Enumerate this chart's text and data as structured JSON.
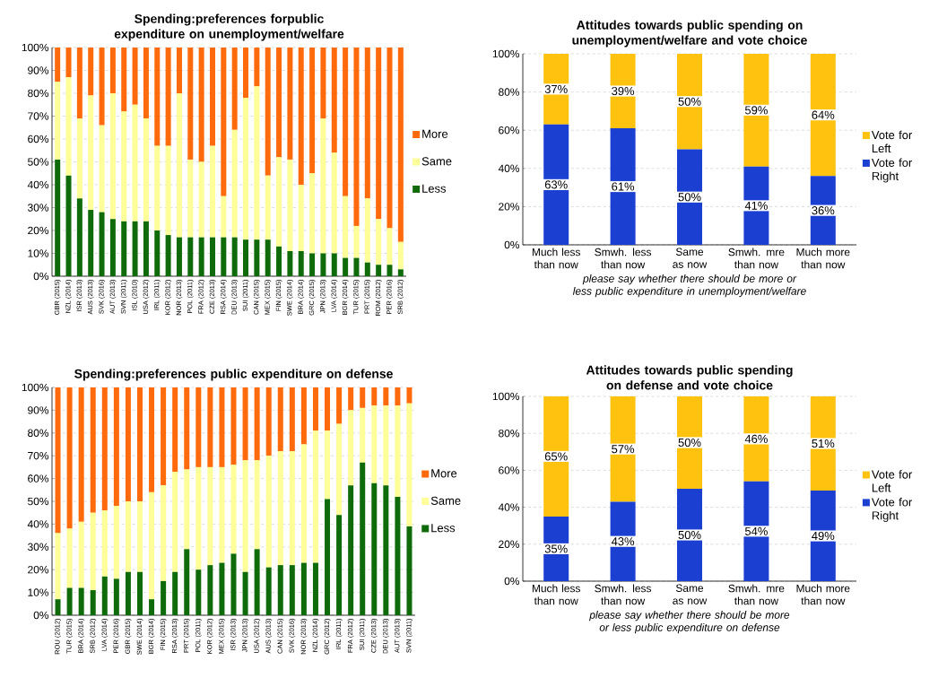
{
  "chart_data": [
    {
      "type": "bar",
      "stacked": true,
      "title": "Spending:preferences forpublic expenditure on unemployment/welfare",
      "grid": "y",
      "legend": "right",
      "categories": [
        "GBR (2015)",
        "NZL (2014)",
        "ISR (2013)",
        "AUS (2013)",
        "SVK (2016)",
        "AUT (2013)",
        "SVN (2011)",
        "ISL (2010)",
        "USA (2012)",
        "IRL (2011)",
        "KOR (2012)",
        "NOR (2013)",
        "POL (2011)",
        "FRA (2012)",
        "CZE (2013)",
        "RSA (2014)",
        "DEU (2013)",
        "SUI (2011)",
        "CAN (2015)",
        "MEX (2015)",
        "FIN (2015)",
        "SWE (2014)",
        "BRA (2014)",
        "GRC (2015)",
        "JPN (2013)",
        "LVA (2014)",
        "BGR (2014)",
        "TUR (2015)",
        "PRT (2015)",
        "ROM (2012)",
        "PER (2016)",
        "SRB (2012)"
      ],
      "series": [
        {
          "name": "Less",
          "color": "#0f6b0a",
          "values": [
            51,
            44,
            34,
            29,
            28,
            25,
            24,
            24,
            24,
            20,
            18,
            17,
            17,
            17,
            17,
            17,
            17,
            16,
            16,
            16,
            13,
            11,
            11,
            10,
            10,
            10,
            8,
            8,
            6,
            5,
            5,
            3
          ]
        },
        {
          "name": "Same",
          "color": "#ffff99",
          "values": [
            34,
            43,
            35,
            50,
            38,
            55,
            48,
            51,
            45,
            37,
            39,
            63,
            34,
            33,
            40,
            18,
            47,
            62,
            67,
            28,
            39,
            40,
            29,
            35,
            59,
            44,
            27,
            14,
            28,
            20,
            16,
            12
          ]
        },
        {
          "name": "More",
          "color": "#ff6a0d",
          "values": [
            15,
            13,
            31,
            21,
            34,
            20,
            28,
            25,
            31,
            43,
            43,
            20,
            49,
            50,
            43,
            65,
            36,
            22,
            17,
            56,
            48,
            49,
            60,
            55,
            31,
            46,
            65,
            78,
            66,
            75,
            79,
            85
          ]
        }
      ],
      "ylim": [
        0,
        100
      ],
      "yticks": [
        {
          "value": 0,
          "label": "0%"
        },
        {
          "value": 10,
          "label": "10%"
        },
        {
          "value": 20,
          "label": "20%"
        },
        {
          "value": 30,
          "label": "30%"
        },
        {
          "value": 40,
          "label": "40%"
        },
        {
          "value": 50,
          "label": "50%"
        },
        {
          "value": 60,
          "label": "60%"
        },
        {
          "value": 70,
          "label": "70%"
        },
        {
          "value": 80,
          "label": "80%"
        },
        {
          "value": 90,
          "label": "90%"
        },
        {
          "value": 100,
          "label": "100%"
        }
      ]
    },
    {
      "type": "bar",
      "stacked": true,
      "title": "Attitudes towards public spending on unemployment/welfare and vote choice",
      "xlabel": "please say whether there should be more or less public expenditure in unemployment/welfare",
      "grid": "y",
      "legend": "right",
      "categories": [
        "Much less than now",
        "Smwh. less than now",
        "Same as now",
        "Smwh. mre than now",
        "Much more than now"
      ],
      "series": [
        {
          "name": "Vote for Right",
          "color": "#1a3fd1",
          "values": [
            63,
            61,
            50,
            41,
            36
          ],
          "value_labels": [
            "63%",
            "61%",
            "50%",
            "41%",
            "36%"
          ]
        },
        {
          "name": "Vote for Left",
          "color": "#ffc20e",
          "values": [
            37,
            39,
            50,
            59,
            64
          ],
          "value_labels": [
            "37%",
            "39%",
            "50%",
            "59%",
            "64%"
          ]
        }
      ],
      "ylim": [
        0,
        100
      ],
      "yticks": [
        {
          "value": 0,
          "label": "0%"
        },
        {
          "value": 20,
          "label": "20%"
        },
        {
          "value": 40,
          "label": "40%"
        },
        {
          "value": 60,
          "label": "60%"
        },
        {
          "value": 80,
          "label": "80%"
        },
        {
          "value": 100,
          "label": "100%"
        }
      ]
    },
    {
      "type": "bar",
      "stacked": true,
      "title": "Spending:preferences public expenditure on defense",
      "grid": "y",
      "legend": "right",
      "categories": [
        "ROU (2012)",
        "TUR (2015)",
        "BRA (2014)",
        "SRB (2012)",
        "LVA (2014)",
        "PER (2016)",
        "GBR (2015)",
        "SWE (2014)",
        "BGR (2014)",
        "FIN (2015)",
        "RSA (2013)",
        "PRT (2015)",
        "POL (2011)",
        "KOR (2012)",
        "MEX (2015)",
        "ISR (2013)",
        "JPN (2013)",
        "USA (2012)",
        "AUS (2013)",
        "CAN (2015)",
        "SVK (2016)",
        "NOR (2013)",
        "NZL (2014)",
        "GRC (2012)",
        "IRL (2011)",
        "FRA (2012)",
        "SUI (2011)",
        "CZE (2013)",
        "DEU (2013)",
        "AUT (2013)",
        "SVN (2011)"
      ],
      "series": [
        {
          "name": "Less",
          "color": "#0f6b0a",
          "values": [
            7,
            12,
            12,
            11,
            17,
            16,
            19,
            19,
            7,
            15,
            19,
            29,
            20,
            22,
            23,
            27,
            19,
            29,
            21,
            22,
            22,
            23,
            23,
            51,
            44,
            57,
            67,
            58,
            57,
            52,
            39
          ]
        },
        {
          "name": "Same",
          "color": "#ffff99",
          "values": [
            29,
            26,
            29,
            34,
            29,
            32,
            31,
            31,
            47,
            42,
            44,
            35,
            45,
            43,
            42,
            39,
            49,
            39,
            49,
            50,
            50,
            52,
            58,
            30,
            40,
            33,
            24,
            34,
            35,
            40,
            54
          ]
        },
        {
          "name": "More",
          "color": "#ff6a0d",
          "values": [
            64,
            62,
            59,
            55,
            54,
            52,
            50,
            50,
            46,
            43,
            37,
            36,
            35,
            35,
            35,
            34,
            32,
            32,
            30,
            28,
            28,
            25,
            19,
            19,
            16,
            10,
            9,
            8,
            8,
            8,
            7
          ]
        }
      ],
      "ylim": [
        0,
        100
      ],
      "yticks": [
        {
          "value": 0,
          "label": "0%"
        },
        {
          "value": 10,
          "label": "10%"
        },
        {
          "value": 20,
          "label": "20%"
        },
        {
          "value": 30,
          "label": "30%"
        },
        {
          "value": 40,
          "label": "40%"
        },
        {
          "value": 50,
          "label": "50%"
        },
        {
          "value": 60,
          "label": "60%"
        },
        {
          "value": 70,
          "label": "70%"
        },
        {
          "value": 80,
          "label": "80%"
        },
        {
          "value": 90,
          "label": "90%"
        },
        {
          "value": 100,
          "label": "100%"
        }
      ]
    },
    {
      "type": "bar",
      "stacked": true,
      "title": "Attitudes towards public spending on defense and vote choice",
      "xlabel": "please say whether there should be more or less public expenditure on defense",
      "grid": "y",
      "legend": "right",
      "categories": [
        "Much less than now",
        "Smwh. less than now",
        "Same as now",
        "Smwh. mre than now",
        "Much more than now"
      ],
      "series": [
        {
          "name": "Vote for Right",
          "color": "#1a3fd1",
          "values": [
            35,
            43,
            50,
            54,
            49
          ],
          "value_labels": [
            "35%",
            "43%",
            "50%",
            "54%",
            "49%"
          ]
        },
        {
          "name": "Vote for Left",
          "color": "#ffc20e",
          "values": [
            65,
            57,
            50,
            46,
            51
          ],
          "value_labels": [
            "65%",
            "57%",
            "50%",
            "46%",
            "51%"
          ]
        }
      ],
      "ylim": [
        0,
        100
      ],
      "yticks": [
        {
          "value": 0,
          "label": "0%"
        },
        {
          "value": 20,
          "label": "20%"
        },
        {
          "value": 40,
          "label": "40%"
        },
        {
          "value": 60,
          "label": "60%"
        },
        {
          "value": 80,
          "label": "80%"
        },
        {
          "value": 100,
          "label": "100%"
        }
      ]
    }
  ]
}
